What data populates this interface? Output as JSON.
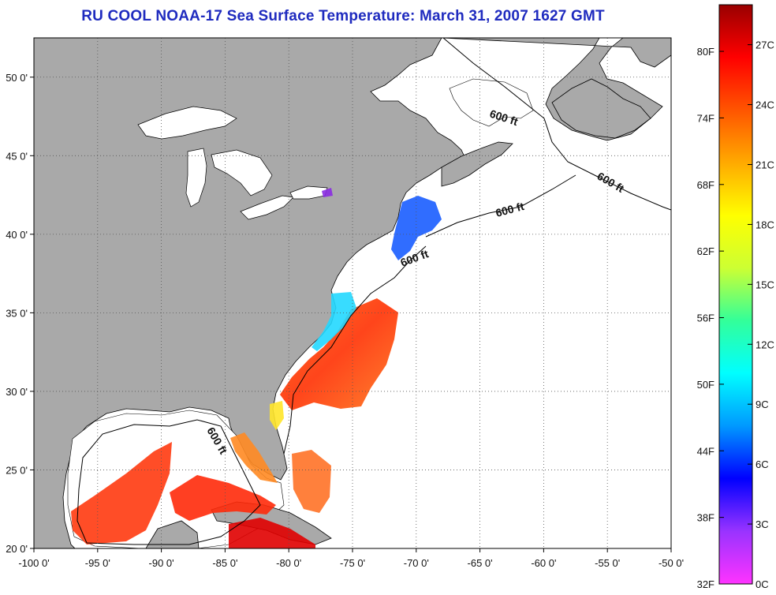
{
  "title": "RU COOL  NOAA-17  Sea Surface Temperature:  March 31, 2007 1627 GMT",
  "map": {
    "lon_range": [
      -100,
      -50
    ],
    "lat_range": [
      20,
      52.5
    ],
    "x_ticks": [
      -100,
      -95,
      -90,
      -85,
      -80,
      -75,
      -70,
      -65,
      -60,
      -55,
      -50
    ],
    "x_tick_labels": [
      "-100 0'",
      "-95 0'",
      "-90 0'",
      "-85 0'",
      "-80 0'",
      "-75 0'",
      "-70 0'",
      "-65 0'",
      "-60 0'",
      "-55 0'",
      "-50 0'"
    ],
    "y_ticks": [
      20,
      25,
      30,
      35,
      40,
      45,
      50
    ],
    "y_tick_labels": [
      "20 0'",
      "25 0'",
      "30 0'",
      "35 0'",
      "40 0'",
      "45 0'",
      "50 0'"
    ],
    "grid": "dotted",
    "colors": {
      "land": "#a9a9a9",
      "ocean_no_data": "#ffffff",
      "coast": "#000000"
    },
    "contour_labels": [
      "600 ft",
      "600 ft",
      "600 ft",
      "600 ft",
      "600 ft"
    ]
  },
  "colorbar": {
    "fahrenheit_labels": [
      "32F",
      "38F",
      "44F",
      "50F",
      "56F",
      "62F",
      "68F",
      "74F",
      "80F"
    ],
    "celsius_labels": [
      "0C",
      "3C",
      "6C",
      "9C",
      "12C",
      "15C",
      "18C",
      "21C",
      "24C",
      "27C"
    ],
    "celsius_range": [
      0,
      29
    ],
    "colors": [
      "#ff33ff",
      "#9933ff",
      "#0000ff",
      "#0099ff",
      "#00ffff",
      "#33ff99",
      "#ccff33",
      "#ffff00",
      "#ffaa00",
      "#ff5500",
      "#ff0000",
      "#990000"
    ]
  }
}
